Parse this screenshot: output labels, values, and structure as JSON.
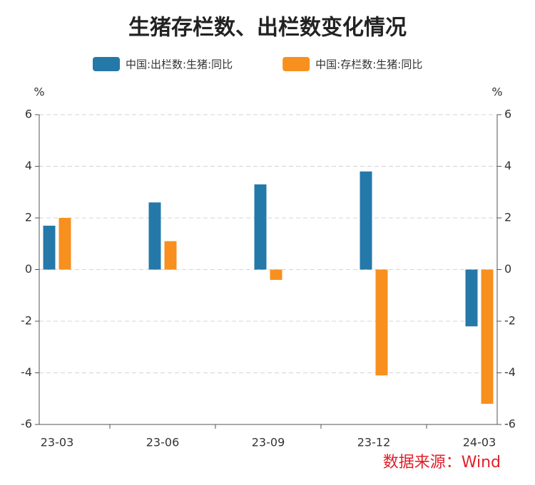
{
  "chart_data": {
    "type": "bar",
    "title": "生猪存栏数、出栏数变化情况",
    "categories": [
      "23-03",
      "23-06",
      "23-09",
      "23-12",
      "24-03"
    ],
    "series": [
      {
        "name": "中国:出栏数:生猪:同比",
        "color": "#2479a8",
        "values": [
          1.7,
          2.6,
          3.3,
          3.8,
          -2.2
        ]
      },
      {
        "name": "中国:存栏数:生猪:同比",
        "color": "#f7901e",
        "values": [
          2.0,
          1.1,
          -0.4,
          -4.1,
          -5.2
        ]
      }
    ],
    "y_label": "%",
    "y2_label": "%",
    "ylim": [
      -6,
      6
    ],
    "yticks": [
      -6,
      -4,
      -2,
      0,
      2,
      4,
      6
    ],
    "y2lim": [
      -6,
      6
    ],
    "y2ticks": [
      -6,
      -4,
      -2,
      0,
      2,
      4,
      6
    ],
    "grid": true,
    "legend": "top",
    "source": "数据来源：Wind"
  }
}
